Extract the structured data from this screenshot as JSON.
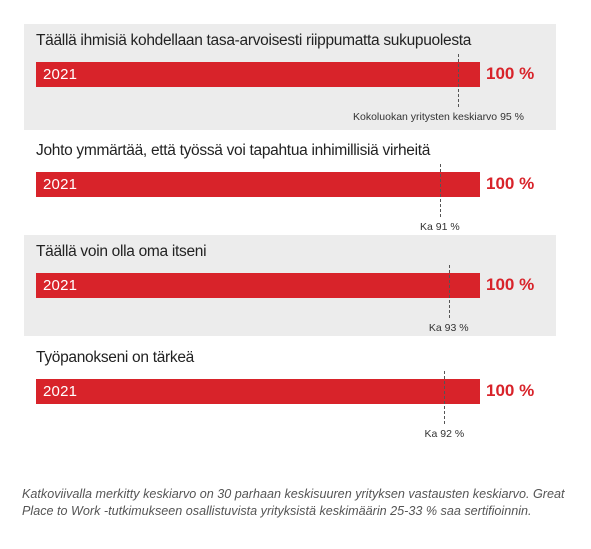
{
  "chart_data": {
    "type": "bar",
    "orientation": "horizontal",
    "colors": {
      "bar": "#d8232a",
      "value_text": "#d8232a",
      "panel_alt": "#ececec"
    },
    "items": [
      {
        "title": "Täällä ihmisiä kohdellaan tasa-arvoisesti riippumatta sukupuolesta",
        "bar_label": "2021",
        "value": 100,
        "value_label": "100 %",
        "average": 95,
        "average_label": "Kokoluokan yritysten keskiarvo 95 %"
      },
      {
        "title": "Johto ymmärtää, että työssä voi tapahtua inhimillisiä virheitä",
        "bar_label": "2021",
        "value": 100,
        "value_label": "100 %",
        "average": 91,
        "average_label": "Ka 91 %"
      },
      {
        "title": "Täällä voin olla oma itseni",
        "bar_label": "2021",
        "value": 100,
        "value_label": "100 %",
        "average": 93,
        "average_label": "Ka 93 %"
      },
      {
        "title": "Työpanokseni on tärkeä",
        "bar_label": "2021",
        "value": 100,
        "value_label": "100 %",
        "average": 92,
        "average_label": "Ka 92 %"
      }
    ]
  },
  "caption": "Katkoviivalla merkitty keskiarvo on 30 parhaan keskisuuren yrityksen vastausten keskiarvo. Great Place to Work -tutkimukseen osallistuvista yrityksistä keskimäärin 25-33 % saa sertifioinnin."
}
